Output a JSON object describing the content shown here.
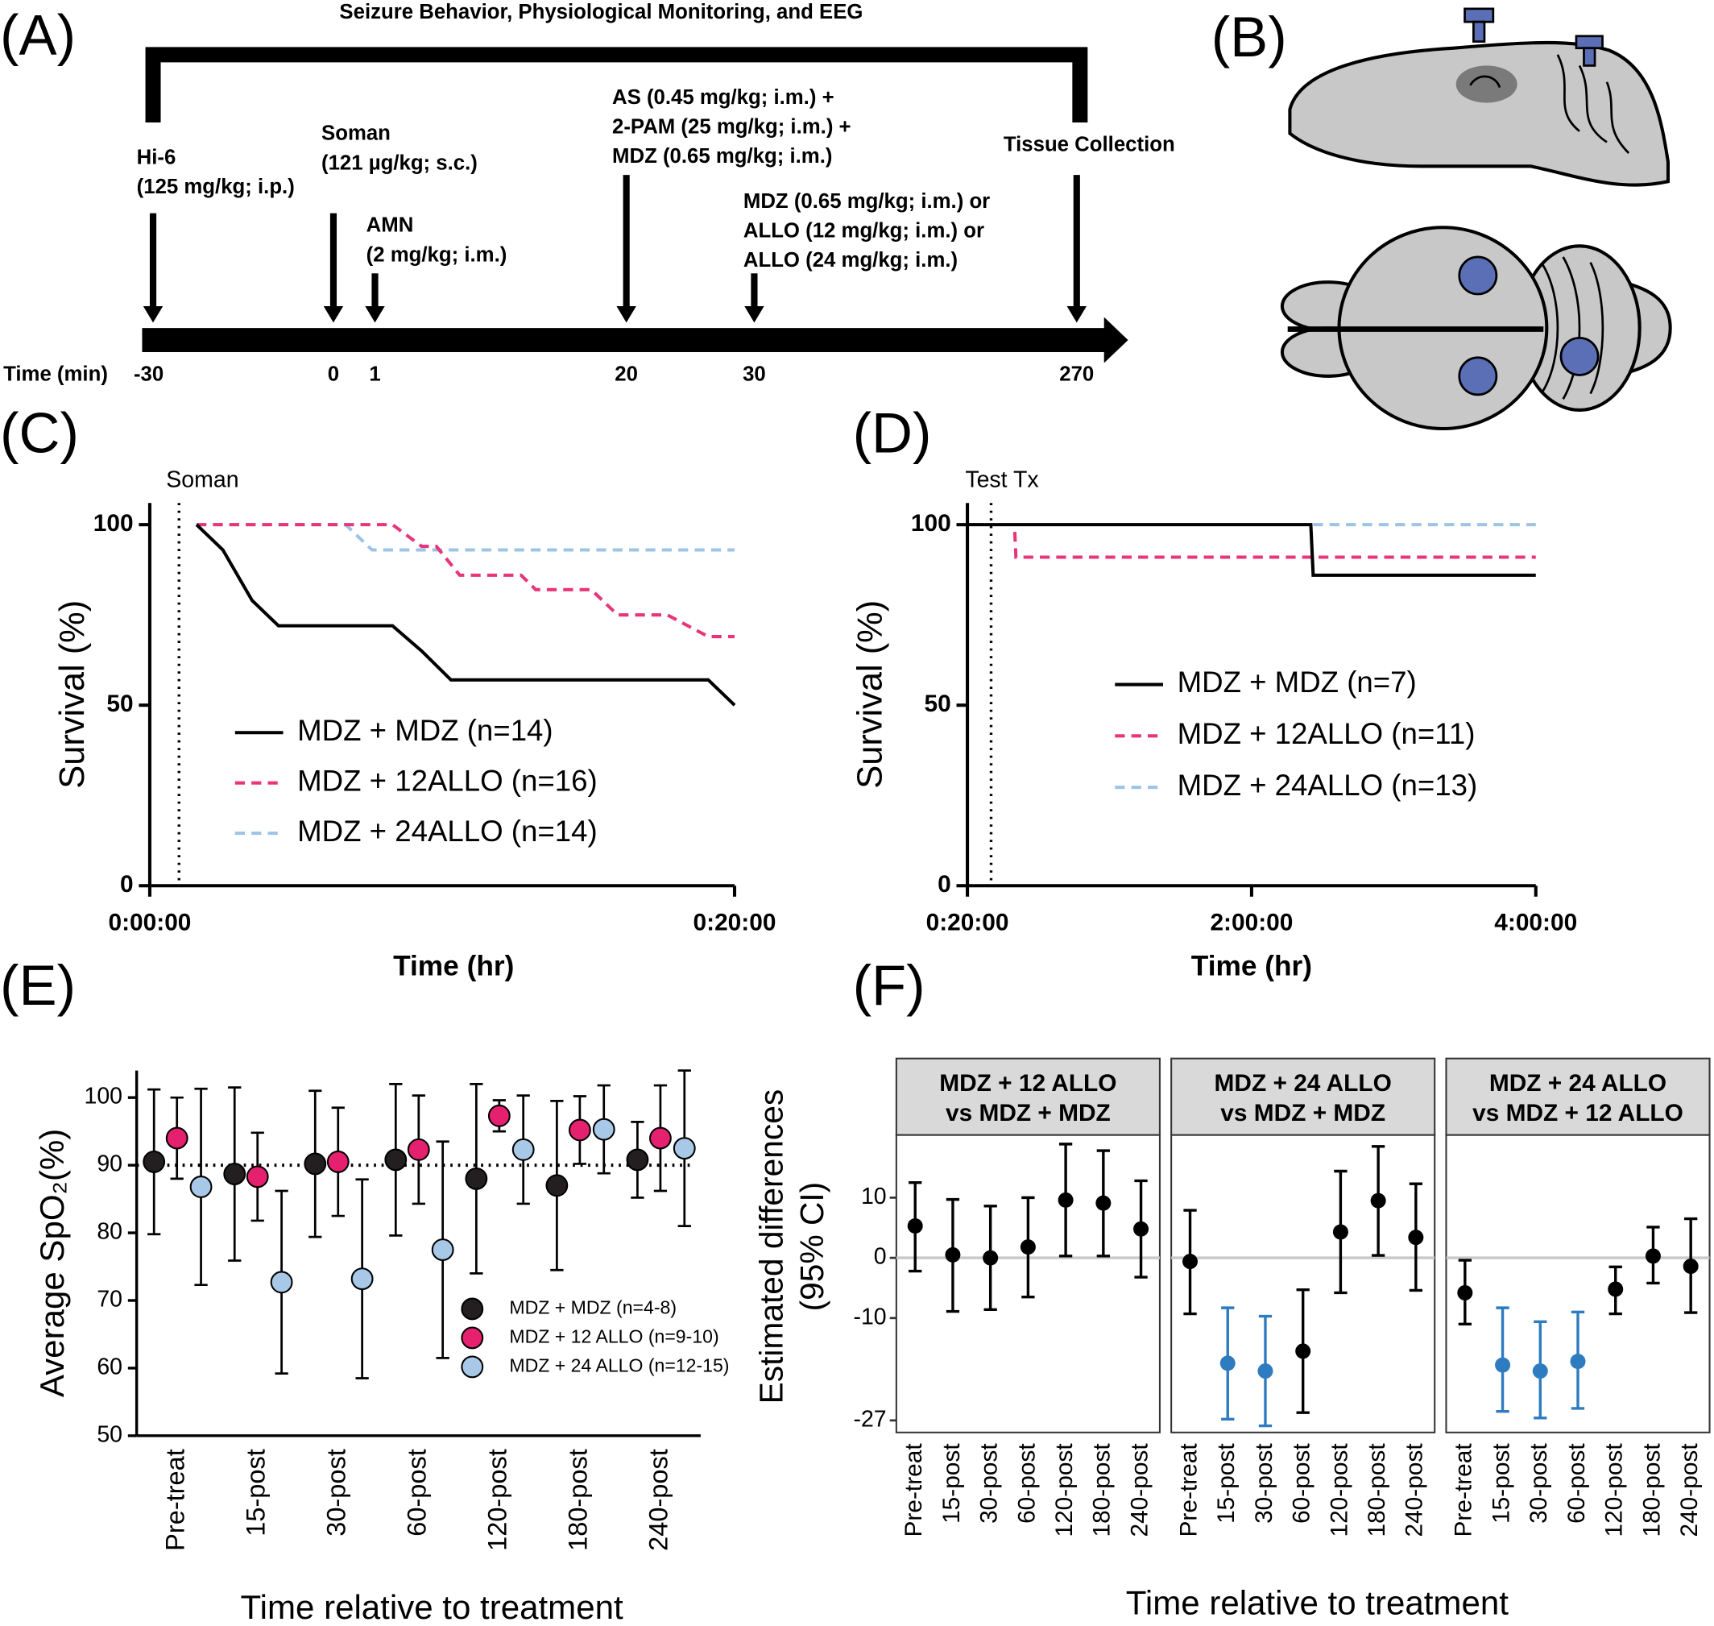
{
  "timeline": {
    "panel_label": "(A)",
    "title": "Seizure Behavior, Physiological Monitoring, and EEG",
    "axis_label": "Time (min)",
    "events": [
      {
        "time": "-30",
        "text": [
          "Hi-6",
          "(125 mg/kg; i.p.)"
        ]
      },
      {
        "time": "0",
        "text": [
          "Soman",
          "(121 µg/kg; s.c.)"
        ]
      },
      {
        "time": "1",
        "text": [
          "AMN",
          "(2 mg/kg; i.m.)"
        ]
      },
      {
        "time": "20",
        "text": [
          "AS (0.45 mg/kg; i.m.) +",
          "2-PAM (25 mg/kg; i.m.) +",
          "MDZ (0.65 mg/kg; i.m.)"
        ]
      },
      {
        "time": "30",
        "text": [
          "MDZ (0.65 mg/kg; i.m.) or",
          "ALLO  (12 mg/kg; i.m.) or",
          "ALLO (24 mg/kg; i.m.)"
        ]
      },
      {
        "time": "270",
        "text": [
          "Tissue Collection"
        ]
      }
    ]
  },
  "brain": {
    "panel_label": "(B)"
  },
  "chart_data": [
    {
      "type": "line",
      "panel_label": "(C)",
      "y_label": "Survival (%)",
      "x_label": "Time (hr)",
      "annotation": {
        "text": "Soman",
        "x": 1
      },
      "xlim": [
        0,
        20
      ],
      "xticks": [
        {
          "value": 0,
          "label": "0:00:00"
        },
        {
          "value": 20,
          "label": "0:20:00"
        }
      ],
      "ylim": [
        0,
        106
      ],
      "yticks": [
        0,
        50,
        100
      ],
      "series": [
        {
          "name": "MDZ + MDZ (n=14)",
          "color": "#000000",
          "line_style": "solid",
          "x": [
            1.6,
            2.5,
            3.5,
            4.4,
            8.3,
            9.3,
            10.3,
            19.1,
            20
          ],
          "values": [
            100,
            93,
            79,
            72,
            72,
            65,
            57,
            57,
            50
          ]
        },
        {
          "name": "MDZ + 12ALLO (n=16)",
          "color": "#e8357a",
          "line_style": "dashed",
          "x": [
            1.6,
            8.3,
            9.3,
            9.8,
            10.6,
            12.7,
            13.2,
            15.1,
            16.0,
            17.7,
            19.1,
            20
          ],
          "values": [
            100,
            100,
            94,
            94,
            86,
            86,
            82,
            82,
            75,
            75,
            69,
            69
          ]
        },
        {
          "name": "MDZ + 24ALLO (n=14)",
          "color": "#9dc3e6",
          "line_style": "dashed",
          "x": [
            1.6,
            6.7,
            7.6,
            20
          ],
          "values": [
            100,
            100,
            93,
            93
          ]
        }
      ]
    },
    {
      "type": "line",
      "panel_label": "(D)",
      "y_label": "Survival (%)",
      "x_label": "Time (hr)",
      "annotation": {
        "text": "Test Tx",
        "x": 10
      },
      "xlim": [
        0,
        240
      ],
      "xticks": [
        {
          "value": 0,
          "label": "0:20:00"
        },
        {
          "value": 120,
          "label": "2:00:00"
        },
        {
          "value": 240,
          "label": "4:00:00"
        }
      ],
      "ylim": [
        0,
        106
      ],
      "yticks": [
        0,
        50,
        100
      ],
      "series": [
        {
          "name": "MDZ + MDZ (n=7)",
          "color": "#000000",
          "line_style": "solid",
          "x": [
            0,
            145,
            146,
            240
          ],
          "values": [
            100,
            100,
            86,
            86
          ]
        },
        {
          "name": "MDZ + 12ALLO (n=11)",
          "color": "#e8357a",
          "line_style": "dashed",
          "x": [
            20,
            20.5,
            240
          ],
          "values": [
            98,
            91,
            91
          ]
        },
        {
          "name": "MDZ + 24ALLO (n=13)",
          "color": "#9dc3e6",
          "line_style": "dashed",
          "x": [
            146,
            240
          ],
          "values": [
            100,
            100
          ]
        }
      ]
    },
    {
      "type": "errorbar",
      "panel_label": "(E)",
      "y_label": "Average SpO₂(%)",
      "x_label": "Time relative to treatment",
      "categories": [
        "Pre-treat",
        "15-post",
        "30-post",
        "60-post",
        "120-post",
        "180-post",
        "240-post"
      ],
      "ylim": [
        50,
        104
      ],
      "yticks": [
        50,
        60,
        70,
        80,
        90,
        100
      ],
      "reference_line": 90,
      "series": [
        {
          "name": "MDZ + MDZ (n=4-8)",
          "color": "#231f20",
          "values": [
            90.5,
            88.7,
            90.2,
            90.8,
            88.0,
            87.0,
            90.8
          ],
          "errors": [
            10.7,
            12.8,
            10.8,
            11.2,
            14.0,
            12.5,
            5.6
          ]
        },
        {
          "name": "MDZ + 12 ALLO (n=9-10)",
          "color": "#e5206e",
          "values": [
            94.0,
            88.3,
            90.5,
            92.3,
            97.3,
            95.2,
            94.0
          ],
          "errors": [
            6.0,
            6.5,
            8.0,
            8.0,
            2.3,
            5.0,
            7.8
          ]
        },
        {
          "name": "MDZ + 24 ALLO (n=12-15)",
          "color": "#a8c8e8",
          "values": [
            86.8,
            72.7,
            73.2,
            77.5,
            92.3,
            95.3,
            92.5
          ],
          "errors": [
            14.5,
            13.5,
            14.7,
            16.0,
            8.0,
            6.5,
            11.5
          ]
        }
      ]
    },
    {
      "type": "facet_errorbar",
      "panel_label": "(F)",
      "y_label": [
        "Estimated differences",
        "(95% CI)"
      ],
      "x_label": "Time relative to treatment",
      "categories": [
        "Pre-treat",
        "15-post",
        "30-post",
        "60-post",
        "120-post",
        "180-post",
        "240-post"
      ],
      "ylim": [
        -29,
        20.4
      ],
      "yticks": [
        10,
        0,
        -10,
        -27
      ],
      "reference_line": 0,
      "facets": [
        {
          "title": [
            "MDZ + 12 ALLO",
            "vs MDZ + MDZ"
          ],
          "values": [
            5.3,
            0.5,
            0,
            1.8,
            9.6,
            9.1,
            4.8
          ],
          "lower": [
            -2.2,
            -8.9,
            -8.6,
            -6.5,
            0.3,
            0.3,
            -3.2
          ],
          "upper": [
            12.5,
            9.7,
            8.6,
            10,
            18.9,
            17.8,
            12.8
          ],
          "colors": [
            "#000000",
            "#000000",
            "#000000",
            "#000000",
            "#000000",
            "#000000",
            "#000000"
          ]
        },
        {
          "title": [
            "MDZ + 24 ALLO",
            "vs MDZ + MDZ"
          ],
          "values": [
            -0.6,
            -17.5,
            -18.8,
            -15.5,
            4.3,
            9.5,
            3.4
          ],
          "lower": [
            -9.3,
            -26.8,
            -27.9,
            -25.7,
            -5.8,
            0.4,
            -5.4
          ],
          "upper": [
            7.9,
            -8.3,
            -9.7,
            -5.3,
            14.4,
            18.5,
            12.3
          ],
          "colors": [
            "#000000",
            "#2e7cbf",
            "#2e7cbf",
            "#000000",
            "#000000",
            "#000000",
            "#000000"
          ]
        },
        {
          "title": [
            "MDZ + 24 ALLO",
            "vs MDZ + 12 ALLO"
          ],
          "values": [
            -5.8,
            -17.8,
            -18.8,
            -17.2,
            -5.2,
            0.3,
            -1.4
          ],
          "lower": [
            -11,
            -25.5,
            -26.6,
            -25,
            -9.3,
            -4.2,
            -9.1
          ],
          "upper": [
            -0.4,
            -8.3,
            -10.6,
            -9,
            -1.5,
            5.1,
            6.5
          ],
          "colors": [
            "#000000",
            "#2e7cbf",
            "#2e7cbf",
            "#2e7cbf",
            "#000000",
            "#000000",
            "#000000"
          ]
        }
      ]
    }
  ]
}
